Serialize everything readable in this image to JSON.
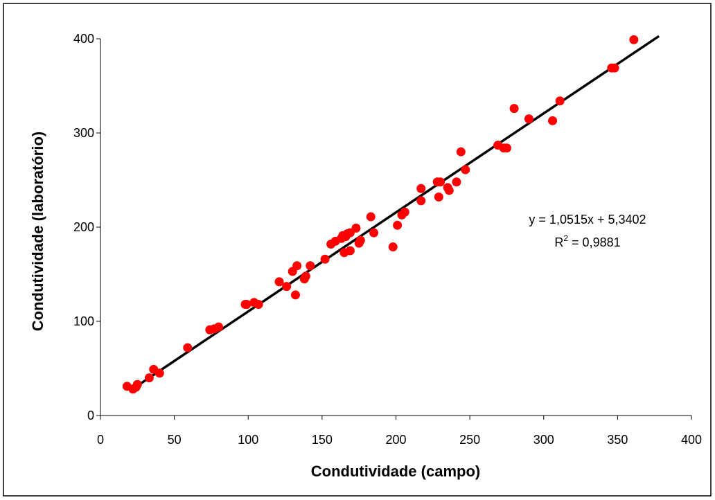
{
  "chart_data": {
    "type": "scatter",
    "title": "",
    "xlabel": "Condutividade (campo)",
    "ylabel": "Condutividade (laboratório)",
    "xlim": [
      0,
      400
    ],
    "ylim": [
      0,
      400
    ],
    "x_ticks": [
      "0",
      "50",
      "100",
      "150",
      "200",
      "250",
      "300",
      "350",
      "400"
    ],
    "y_ticks": [
      "0",
      "100",
      "200",
      "300",
      "400"
    ],
    "grid": false,
    "point_color": "#ff0000",
    "line_color": "#000000",
    "points": [
      [
        18,
        31
      ],
      [
        22,
        28
      ],
      [
        24,
        30
      ],
      [
        25,
        33
      ],
      [
        33,
        40
      ],
      [
        36,
        49
      ],
      [
        40,
        45
      ],
      [
        59,
        72
      ],
      [
        74,
        91
      ],
      [
        77,
        92
      ],
      [
        80,
        94
      ],
      [
        98,
        118
      ],
      [
        99,
        118
      ],
      [
        104,
        120
      ],
      [
        107,
        118
      ],
      [
        121,
        142
      ],
      [
        126,
        137
      ],
      [
        130,
        153
      ],
      [
        133,
        159
      ],
      [
        132,
        128
      ],
      [
        138,
        145
      ],
      [
        139,
        148
      ],
      [
        142,
        159
      ],
      [
        152,
        166
      ],
      [
        156,
        182
      ],
      [
        159,
        185
      ],
      [
        163,
        188
      ],
      [
        164,
        191
      ],
      [
        165,
        173
      ],
      [
        166,
        190
      ],
      [
        167,
        193
      ],
      [
        169,
        194
      ],
      [
        169,
        175
      ],
      [
        173,
        199
      ],
      [
        175,
        183
      ],
      [
        176,
        186
      ],
      [
        183,
        211
      ],
      [
        185,
        194
      ],
      [
        198,
        179
      ],
      [
        201,
        202
      ],
      [
        204,
        213
      ],
      [
        206,
        216
      ],
      [
        217,
        228
      ],
      [
        217,
        241
      ],
      [
        228,
        248
      ],
      [
        229,
        232
      ],
      [
        230,
        248
      ],
      [
        235,
        242
      ],
      [
        236,
        239
      ],
      [
        241,
        248
      ],
      [
        244,
        280
      ],
      [
        247,
        261
      ],
      [
        269,
        287
      ],
      [
        273,
        284
      ],
      [
        275,
        284
      ],
      [
        280,
        326
      ],
      [
        290,
        315
      ],
      [
        306,
        313
      ],
      [
        311,
        334
      ],
      [
        346,
        369
      ],
      [
        348,
        369
      ],
      [
        361,
        399
      ]
    ],
    "trendline": {
      "slope": 1.0515,
      "intercept": 5.3402,
      "x_range": [
        20,
        378
      ],
      "equation_label": "y = 1,0515x + 5,3402",
      "r2_prefix": "R",
      "r2_superscript": "2",
      "r2_value": " = 0,9881"
    }
  }
}
